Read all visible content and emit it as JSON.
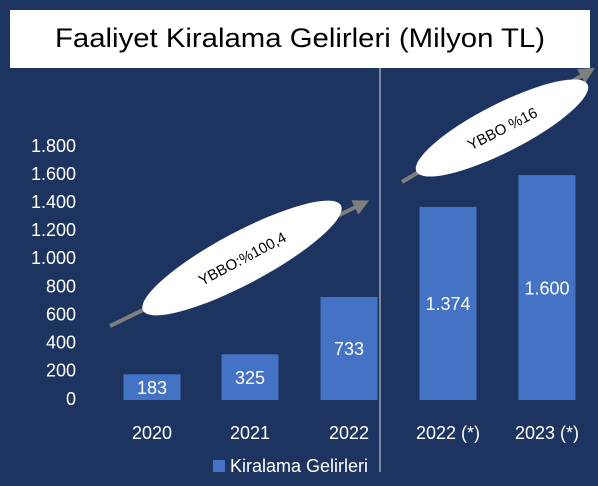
{
  "chart_data": {
    "type": "bar",
    "title": "Faaliyet Kiralama Gelirleri (Milyon TL)",
    "categories": [
      "2020",
      "2021",
      "2022",
      "2022 (*)",
      "2023 (*)"
    ],
    "series": [
      {
        "name": "Kiralama Gelirleri",
        "color": "#4472c4",
        "values": [
          183,
          325,
          733,
          1374,
          1600
        ],
        "value_labels": [
          "183",
          "325",
          "733",
          "1.374",
          "1.600"
        ]
      }
    ],
    "ylim": [
      0,
      1800
    ],
    "yticks": [
      0,
      200,
      400,
      600,
      800,
      {
        "value": 1000,
        "label": "1.000"
      },
      {
        "value": 1200,
        "label": "1.200"
      },
      {
        "value": 1400,
        "label": "1.400"
      },
      {
        "value": 1600,
        "label": "1.600"
      },
      {
        "value": 1800,
        "label": "1.800"
      }
    ],
    "annotations": [
      "YBBO:%100,4",
      "YBBO %16"
    ]
  }
}
